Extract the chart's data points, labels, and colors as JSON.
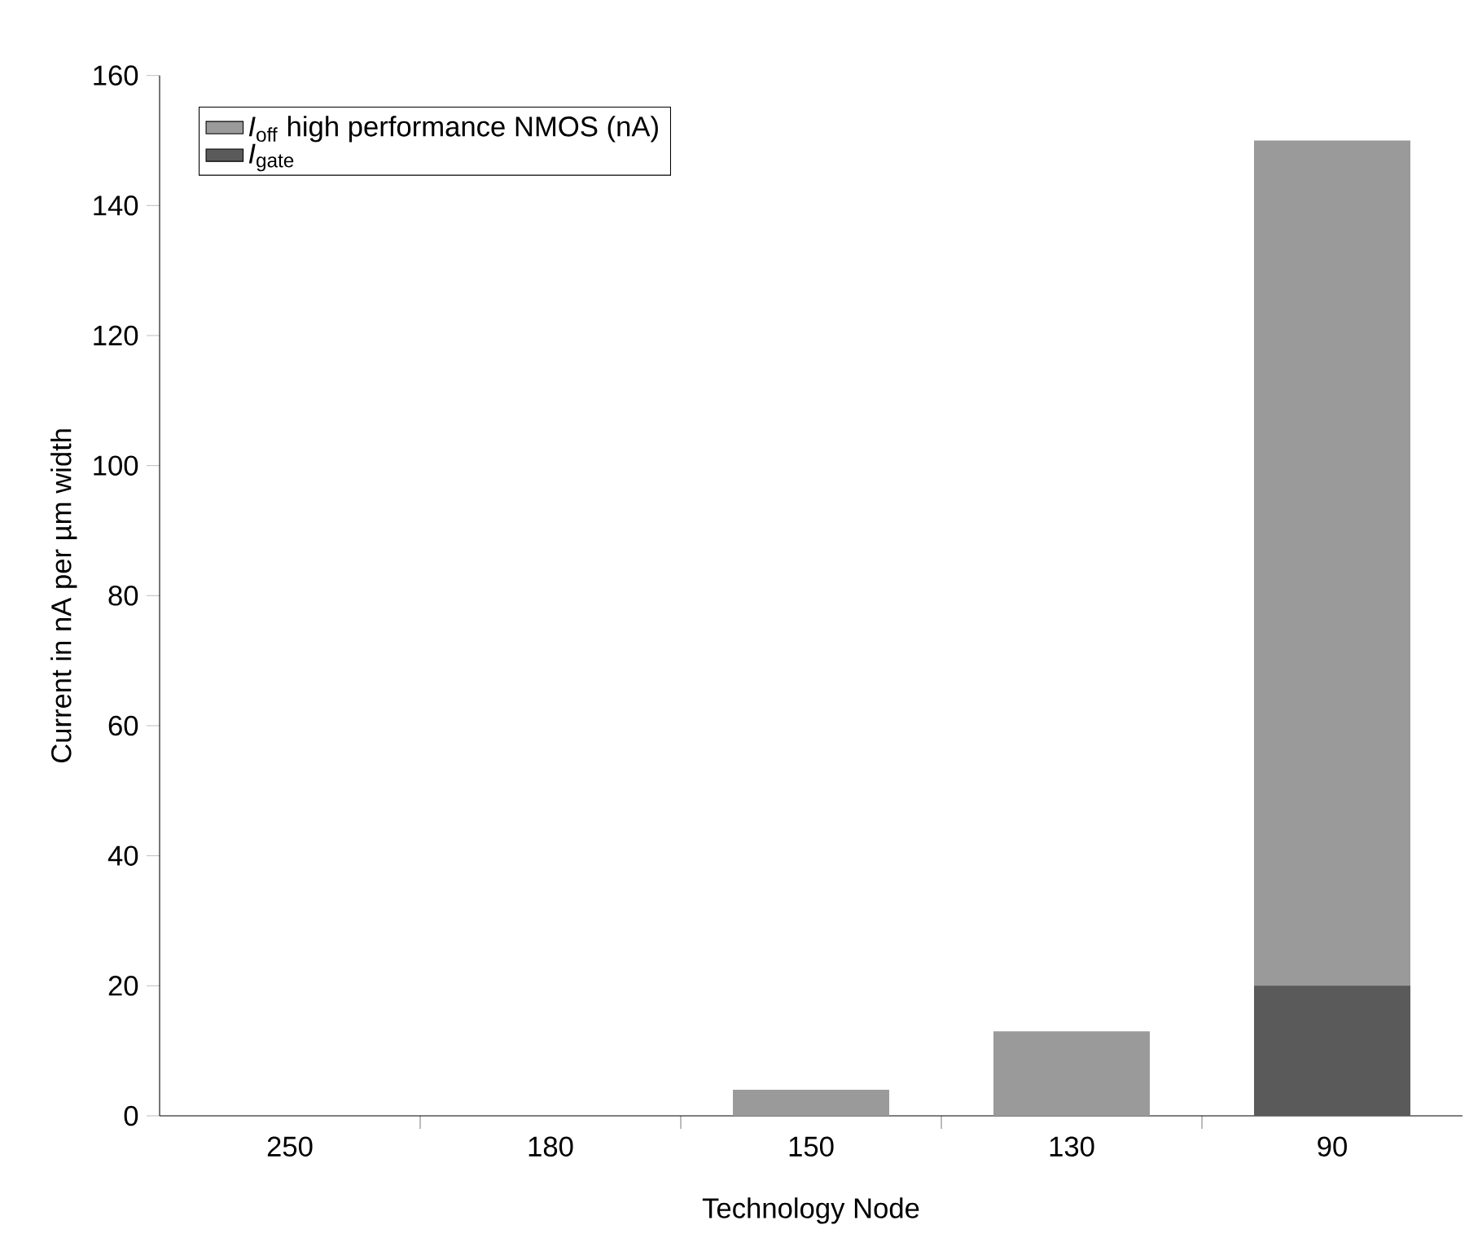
{
  "chart_data": {
    "type": "bar",
    "xlabel": "Technology Node",
    "ylabel": "Current in nA per µm width",
    "categories": [
      "250",
      "180",
      "150",
      "130",
      "90"
    ],
    "series": [
      {
        "name": "*I*$_{off}$ high performance NMOS (nA)",
        "color": "#9a9a9a",
        "values": [
          0,
          0,
          4,
          13,
          150
        ]
      },
      {
        "name": "*I*$_{gate}$",
        "color": "#5a5a5a",
        "values": [
          0,
          0,
          0,
          0,
          20
        ]
      }
    ],
    "ylim": [
      0,
      160
    ],
    "yticks": [
      0,
      20,
      40,
      60,
      80,
      100,
      120,
      140,
      160
    ],
    "legend": "top left"
  }
}
